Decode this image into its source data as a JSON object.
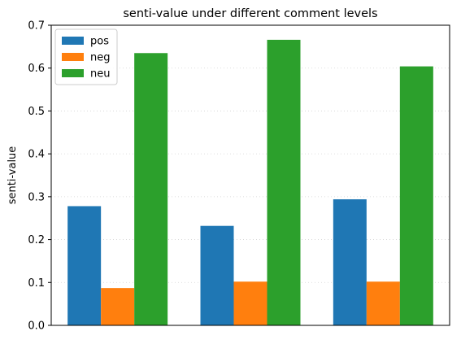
{
  "chart_data": {
    "type": "bar",
    "title": "senti-value under different comment levels",
    "xlabel": "",
    "ylabel": "senti-value",
    "ylim": [
      0,
      0.7
    ],
    "yticks": [
      "0.0",
      "0.1",
      "0.2",
      "0.3",
      "0.4",
      "0.5",
      "0.6",
      "0.7"
    ],
    "grid": "y-dotted",
    "legend_position": "top-left",
    "categories": [
      "",
      "",
      ""
    ],
    "series": [
      {
        "name": "pos",
        "color": "#1f77b4",
        "values": [
          0.278,
          0.232,
          0.294
        ]
      },
      {
        "name": "neg",
        "color": "#ff7f0e",
        "values": [
          0.087,
          0.102,
          0.102
        ]
      },
      {
        "name": "neu",
        "color": "#2ca02c",
        "values": [
          0.635,
          0.666,
          0.604
        ]
      }
    ]
  }
}
